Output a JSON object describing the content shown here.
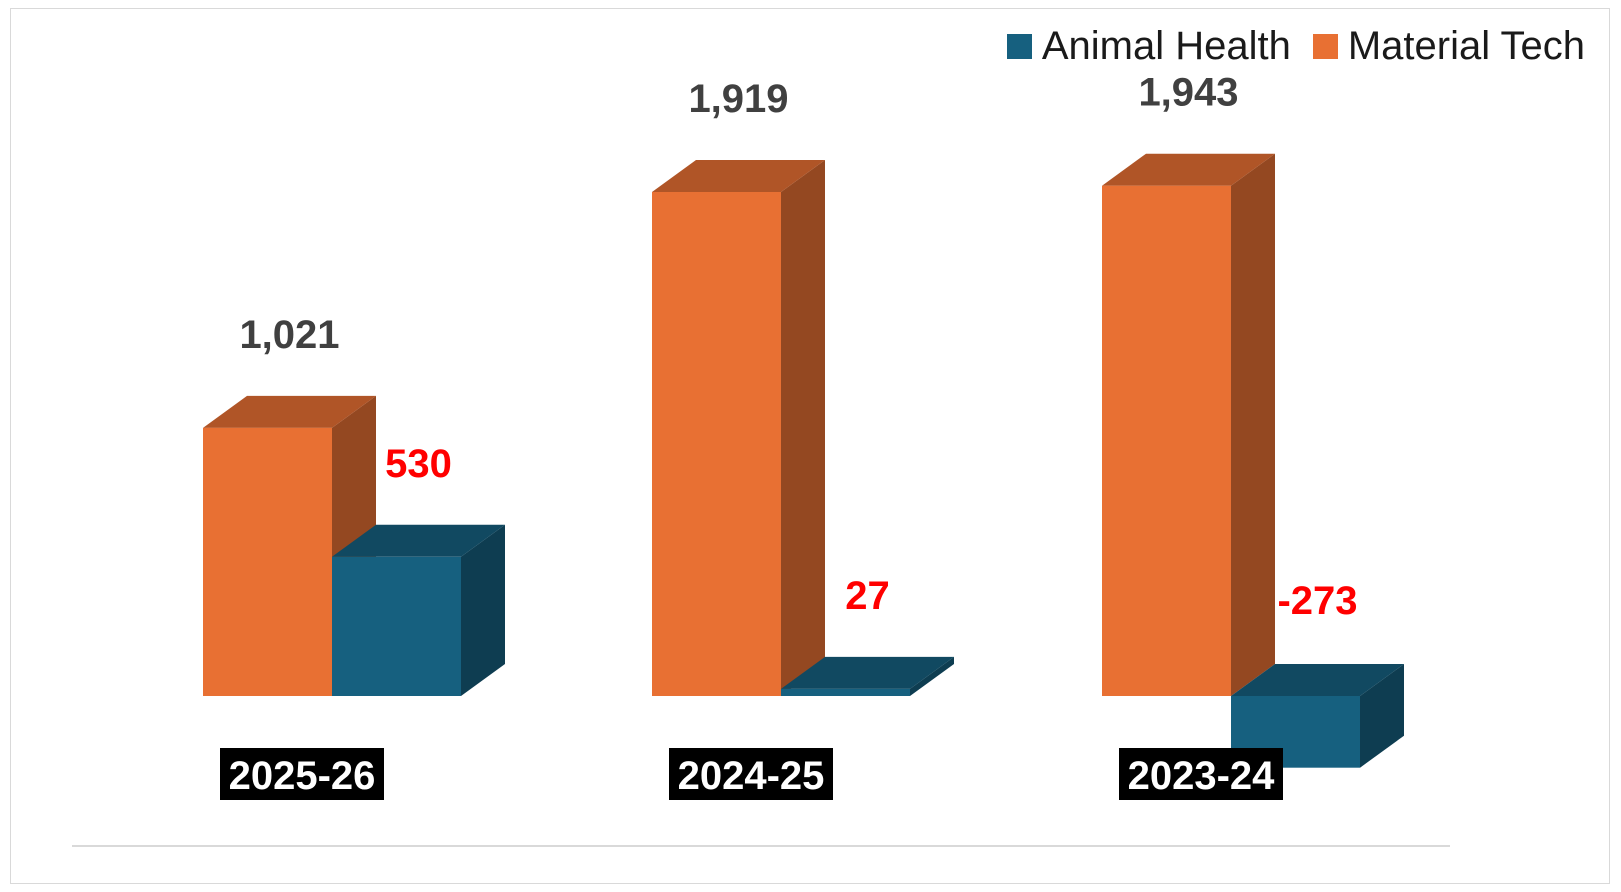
{
  "chart_data": {
    "type": "bar",
    "categories": [
      "2025-26",
      "2024-25",
      "2023-24"
    ],
    "series": [
      {
        "name": "Material Tech",
        "values": [
          1021,
          1919,
          1943
        ],
        "color": "#E87033",
        "label_color": "#404040"
      },
      {
        "name": "Animal Health",
        "values": [
          530,
          27,
          -273
        ],
        "color": "#16607F",
        "label_color": "#FF0000"
      }
    ],
    "data_labels": {
      "Material Tech": [
        "1,021",
        "1,919",
        "1,943"
      ],
      "Animal Health": [
        "530",
        "27",
        "-273"
      ]
    },
    "legend": {
      "position": "top-right",
      "entries": [
        "Animal Health",
        "Material Tech"
      ]
    },
    "grid": false,
    "ylim": [
      -300,
      2000
    ]
  }
}
